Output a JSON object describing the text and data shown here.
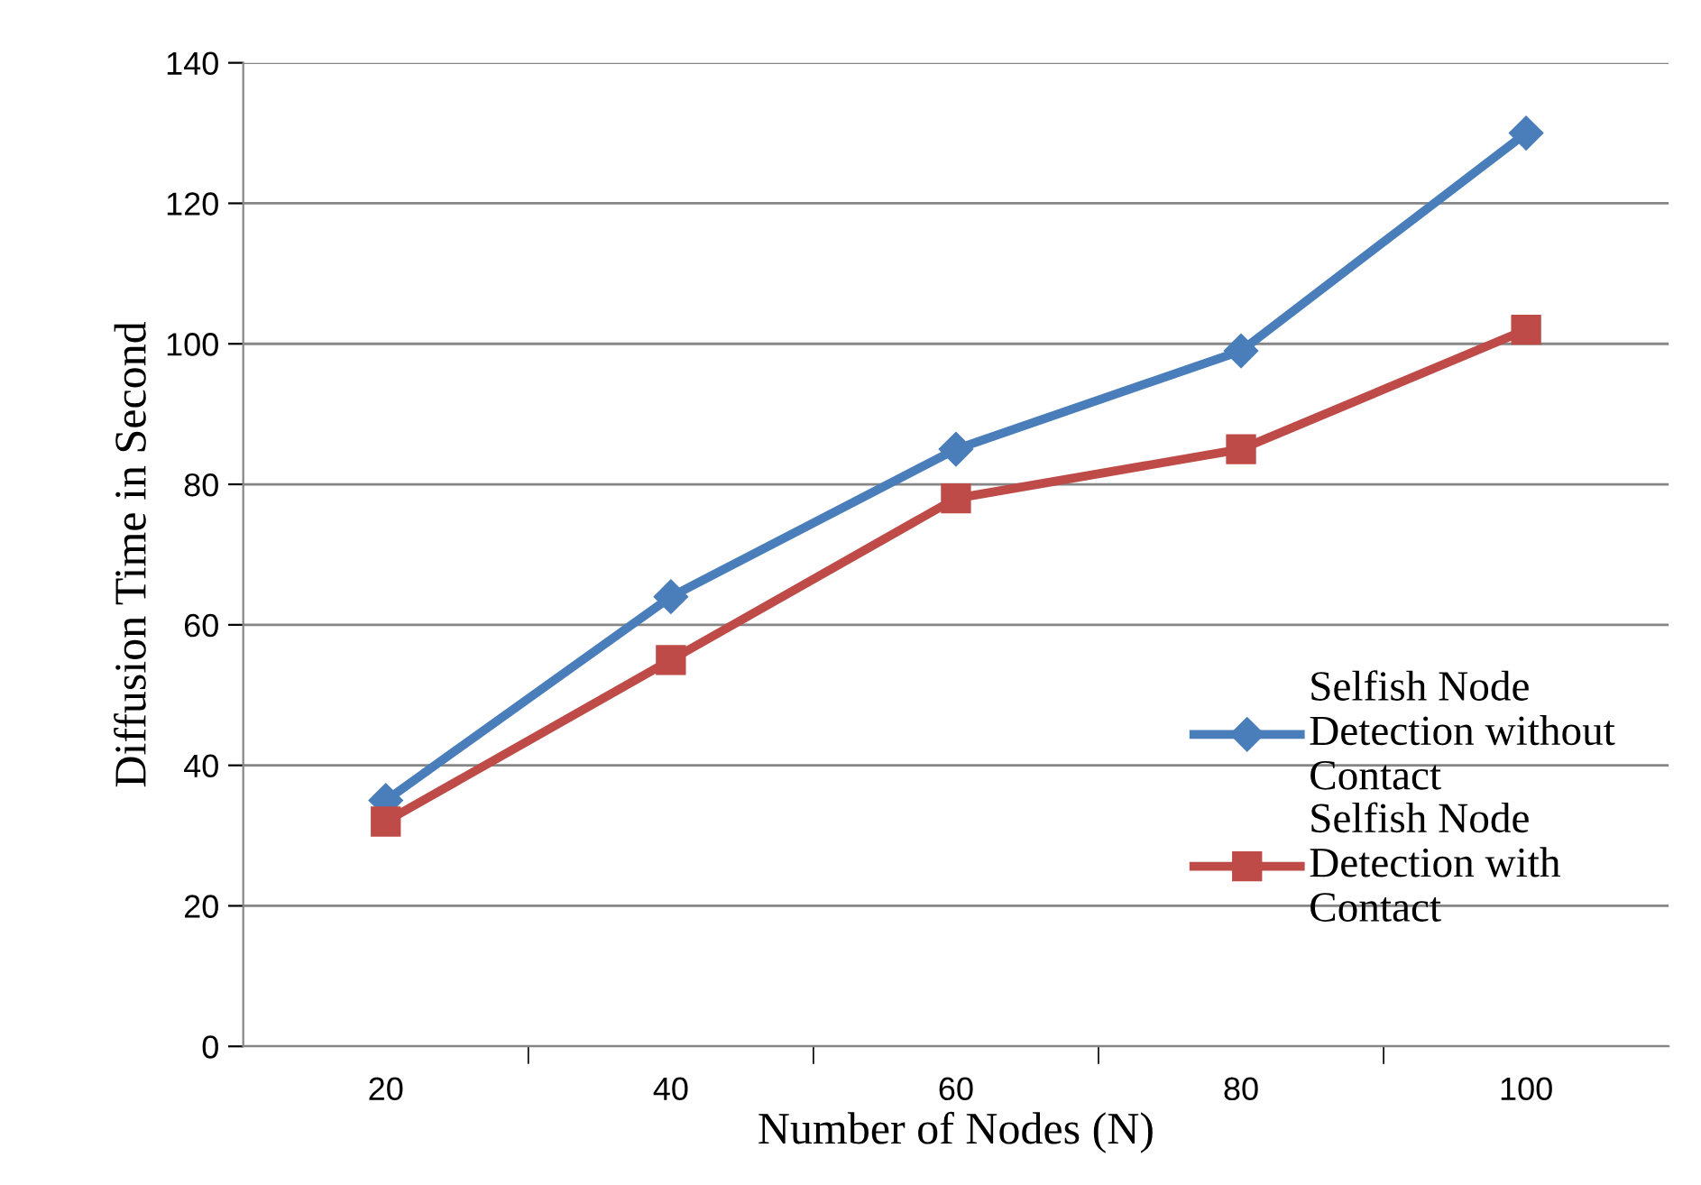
{
  "chart_data": {
    "type": "line",
    "xlabel": "Number of Nodes (N)",
    "ylabel": "Diffusion Time in Second",
    "categories": [
      "20",
      "40",
      "60",
      "80",
      "100"
    ],
    "series": [
      {
        "name": "Selfish Node\nDetection without\nContact",
        "color": "#4a7ebb",
        "values": [
          35,
          64,
          85,
          99,
          130
        ],
        "marker": "diamond"
      },
      {
        "name": "Selfish Node\nDetection with\nContact",
        "color": "#be4b48",
        "values": [
          32,
          55,
          78,
          85,
          102
        ],
        "marker": "square"
      }
    ],
    "ylim": [
      0,
      140
    ],
    "yticks": [
      0,
      20,
      40,
      60,
      80,
      100,
      120,
      140
    ],
    "grid": "y",
    "legend": "right",
    "line_style": "solid"
  }
}
